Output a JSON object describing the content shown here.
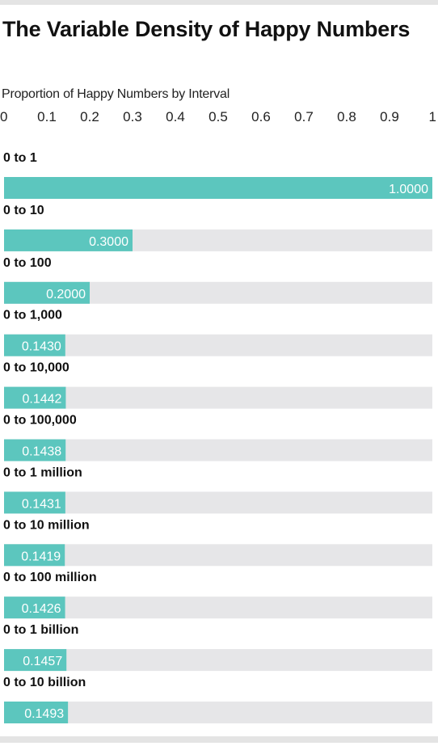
{
  "title": "The Variable Density of Happy Numbers",
  "subtitle": "Proportion of Happy Numbers by Interval",
  "colors": {
    "bar": "#5cc6be",
    "track": "#e6e6e8",
    "label": "#111111",
    "value_label": "#ffffff",
    "rule": "#e4e4e4"
  },
  "chart_data": {
    "type": "bar",
    "orientation": "horizontal",
    "title": "The Variable Density of Happy Numbers",
    "subtitle": "Proportion of Happy Numbers by Interval",
    "xlim": [
      0,
      1
    ],
    "x_ticks": [
      "0",
      "0.1",
      "0.2",
      "0.3",
      "0.4",
      "0.5",
      "0.6",
      "0.7",
      "0.8",
      "0.9",
      "1"
    ],
    "categories": [
      "0 to 1",
      "0 to 10",
      "0 to 100",
      "0 to 1,000",
      "0 to 10,000",
      "0 to 100,000",
      "0 to 1 million",
      "0 to 10 million",
      "0 to 100 million",
      "0 to 1 billion",
      "0 to 10 billion"
    ],
    "values": [
      1.0,
      0.3,
      0.2,
      0.143,
      0.1442,
      0.1438,
      0.1431,
      0.1419,
      0.1426,
      0.1457,
      0.1493
    ],
    "value_labels": [
      "1.0000",
      "0.3000",
      "0.2000",
      "0.1430",
      "0.1442",
      "0.1438",
      "0.1431",
      "0.1419",
      "0.1426",
      "0.1457",
      "0.1493"
    ],
    "grid": false,
    "legend": "none"
  }
}
